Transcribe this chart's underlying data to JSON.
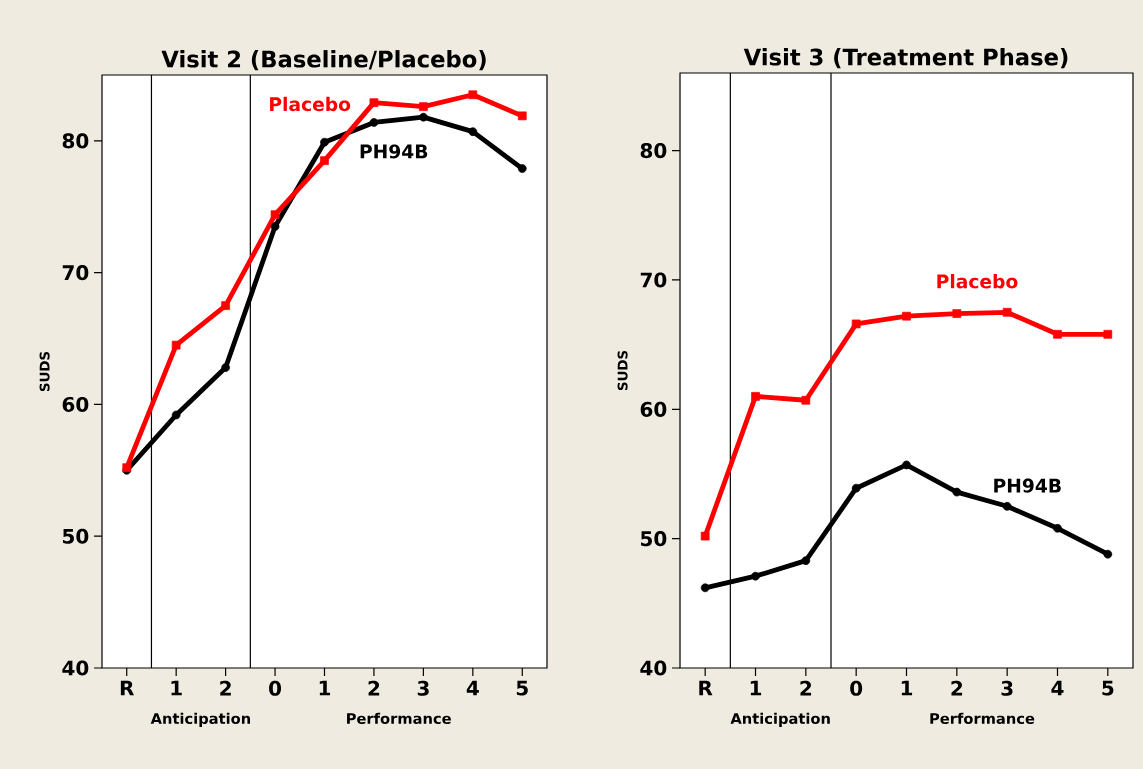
{
  "chart_data": [
    {
      "type": "line",
      "title": "Visit 2 (Baseline/Placebo)",
      "ylabel": "SUDS",
      "categories": [
        "R",
        "1",
        "2",
        "0",
        "1",
        "2",
        "3",
        "4",
        "5"
      ],
      "ylim": [
        40,
        85
      ],
      "yticks": [
        40,
        50,
        60,
        70,
        80
      ],
      "grid": false,
      "legend": false,
      "series": [
        {
          "name": "PH94B",
          "color": "#000000",
          "marker": "circle",
          "values": [
            55.0,
            59.2,
            62.8,
            73.5,
            79.9,
            81.4,
            81.8,
            80.7,
            77.9
          ]
        },
        {
          "name": "Placebo",
          "color": "#ff0000",
          "marker": "square",
          "values": [
            55.2,
            64.5,
            67.5,
            74.4,
            78.5,
            82.9,
            82.6,
            83.5,
            81.9
          ]
        }
      ],
      "annotations": [
        "Anticipation",
        "Performance"
      ]
    },
    {
      "type": "line",
      "title": "Visit 3 (Treatment Phase)",
      "ylabel": "SUDS",
      "categories": [
        "R",
        "1",
        "2",
        "0",
        "1",
        "2",
        "3",
        "4",
        "5"
      ],
      "ylim": [
        40,
        86
      ],
      "yticks": [
        40,
        50,
        60,
        70,
        80
      ],
      "grid": false,
      "legend": false,
      "series": [
        {
          "name": "PH94B",
          "color": "#000000",
          "marker": "circle",
          "values": [
            46.2,
            47.1,
            48.3,
            53.9,
            55.7,
            53.6,
            52.5,
            50.8,
            48.8
          ]
        },
        {
          "name": "Placebo",
          "color": "#ff0000",
          "marker": "square",
          "values": [
            50.2,
            61.0,
            60.7,
            66.6,
            67.2,
            67.4,
            67.5,
            65.8,
            65.8
          ]
        }
      ],
      "annotations": [
        "Anticipation",
        "Performance"
      ]
    }
  ]
}
